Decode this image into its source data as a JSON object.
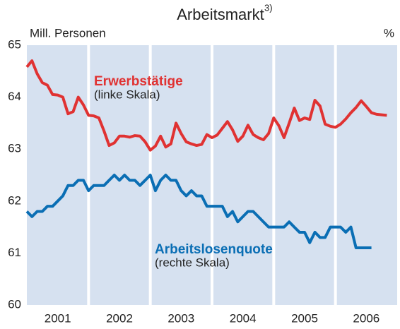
{
  "chart_data": {
    "type": "line",
    "title": "Arbeitsmarkt",
    "title_note": "3)",
    "y_label": "Mill. Personen",
    "y2_label": "%",
    "annotations": [
      "(linke Skala)",
      "(rechte Skala)"
    ],
    "xlim": [
      2001,
      2007
    ],
    "xticks": [
      {
        "value": 2001.5,
        "label": "2001"
      },
      {
        "value": 2002.5,
        "label": "2002"
      },
      {
        "value": 2003.5,
        "label": "2003"
      },
      {
        "value": 2004.5,
        "label": "2004"
      },
      {
        "value": 2005.5,
        "label": "2005"
      },
      {
        "value": 2006.5,
        "label": "2006"
      }
    ],
    "ylim": [
      60,
      65
    ],
    "yticks": [
      60,
      61,
      62,
      63,
      64,
      65
    ],
    "grid": false,
    "background": "#d6e1f0",
    "x": [
      2001.0,
      2001.083,
      2001.167,
      2001.25,
      2001.333,
      2001.417,
      2001.5,
      2001.583,
      2001.667,
      2001.75,
      2001.833,
      2001.917,
      2002.0,
      2002.083,
      2002.167,
      2002.25,
      2002.333,
      2002.417,
      2002.5,
      2002.583,
      2002.667,
      2002.75,
      2002.833,
      2002.917,
      2003.0,
      2003.083,
      2003.167,
      2003.25,
      2003.333,
      2003.417,
      2003.5,
      2003.583,
      2003.667,
      2003.75,
      2003.833,
      2003.917,
      2004.0,
      2004.083,
      2004.167,
      2004.25,
      2004.333,
      2004.417,
      2004.5,
      2004.583,
      2004.667,
      2004.75,
      2004.833,
      2004.917,
      2005.0,
      2005.083,
      2005.167,
      2005.25,
      2005.333,
      2005.417,
      2005.5,
      2005.583,
      2005.667,
      2005.75,
      2005.833,
      2005.917,
      2006.0,
      2006.083,
      2006.167,
      2006.25,
      2006.333,
      2006.417,
      2006.5,
      2006.583,
      2006.667,
      2006.75,
      2006.833
    ],
    "series": [
      {
        "name": "Erwerbstätige",
        "color": "#e03232",
        "values": [
          64.58,
          64.7,
          64.45,
          64.28,
          64.23,
          64.05,
          64.04,
          64.0,
          63.68,
          63.72,
          64.0,
          63.85,
          63.65,
          63.64,
          63.6,
          63.35,
          63.07,
          63.12,
          63.25,
          63.25,
          63.23,
          63.26,
          63.25,
          63.14,
          62.98,
          63.06,
          63.25,
          63.04,
          63.1,
          63.5,
          63.3,
          63.14,
          63.1,
          63.07,
          63.09,
          63.28,
          63.22,
          63.27,
          63.4,
          63.53,
          63.37,
          63.15,
          63.25,
          63.46,
          63.28,
          63.22,
          63.18,
          63.3,
          63.6,
          63.45,
          63.22,
          63.5,
          63.79,
          63.55,
          63.6,
          63.57,
          63.94,
          63.83,
          63.48,
          63.44,
          63.42,
          63.48,
          63.58,
          63.7,
          63.8,
          63.93,
          63.82,
          63.7,
          63.67,
          63.66,
          63.65
        ]
      },
      {
        "name": "Arbeitslosenquote",
        "color": "#0a6eb4",
        "values": [
          61.8,
          61.7,
          61.8,
          61.8,
          61.9,
          61.9,
          62.0,
          62.1,
          62.3,
          62.3,
          62.4,
          62.4,
          62.2,
          62.3,
          62.3,
          62.3,
          62.4,
          62.5,
          62.4,
          62.5,
          62.4,
          62.4,
          62.3,
          62.4,
          62.5,
          62.2,
          62.4,
          62.5,
          62.4,
          62.4,
          62.2,
          62.1,
          62.2,
          62.1,
          62.1,
          61.9,
          61.9,
          61.9,
          61.9,
          61.7,
          61.8,
          61.6,
          61.7,
          61.8,
          61.8,
          61.7,
          61.6,
          61.5,
          61.5,
          61.5,
          61.5,
          61.6,
          61.5,
          61.4,
          61.4,
          61.2,
          61.4,
          61.3,
          61.3,
          61.5,
          61.5,
          61.5,
          61.4,
          61.5,
          61.1,
          61.1,
          61.1,
          61.1,
          null,
          null,
          null
        ]
      }
    ]
  }
}
